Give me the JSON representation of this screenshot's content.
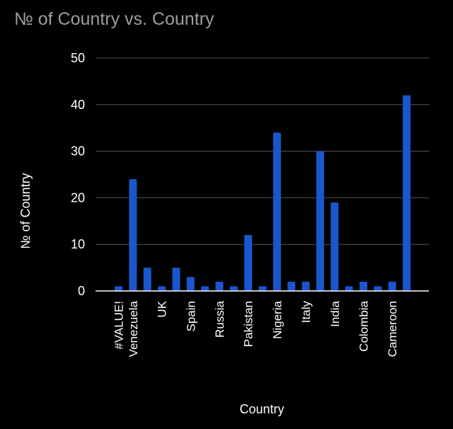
{
  "chart_data": {
    "type": "bar",
    "title": "№ of Country vs. Country",
    "xlabel": "Country",
    "ylabel": "№ of Country",
    "ylim": [
      0,
      50
    ],
    "yticks": [
      0,
      10,
      20,
      30,
      40,
      50
    ],
    "grid": true,
    "legend": "none",
    "categories": [
      "#VALUE!",
      "Venezuela",
      "",
      "UK",
      "",
      "Spain",
      "",
      "Russia",
      "",
      "Pakistan",
      "",
      "Nigeria",
      "",
      "Italy",
      "",
      "India",
      "",
      "Colombia",
      "",
      "Cameroon",
      ""
    ],
    "values": [
      1,
      24,
      5,
      1,
      5,
      3,
      1,
      2,
      1,
      12,
      1,
      34,
      2,
      2,
      30,
      19,
      1,
      2,
      1,
      2,
      42
    ],
    "bar_color": "#1a56cc",
    "background_color": "#000000",
    "grid_color": "#555555",
    "text_color": "#ffffff",
    "title_color": "#9e9e9e"
  }
}
